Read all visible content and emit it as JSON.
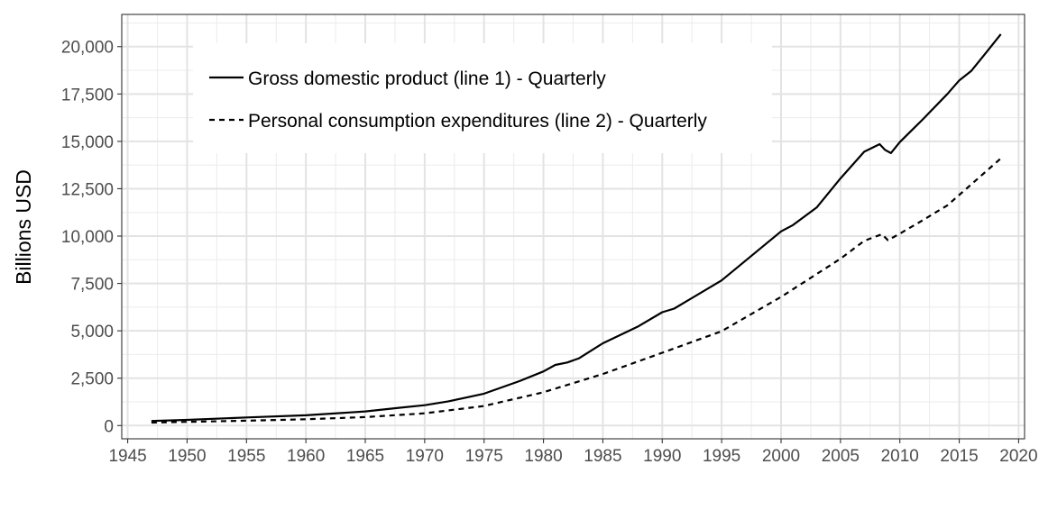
{
  "chart_data": {
    "type": "line",
    "title": "",
    "xlabel": "",
    "ylabel": "Billions USD",
    "xlim": [
      1944.5,
      2020.5
    ],
    "ylim": [
      -700,
      21700
    ],
    "xticks": [
      1945,
      1950,
      1955,
      1960,
      1965,
      1970,
      1975,
      1980,
      1985,
      1990,
      1995,
      2000,
      2005,
      2010,
      2015,
      2020
    ],
    "yticks": [
      0,
      2500,
      5000,
      7500,
      10000,
      12500,
      15000,
      17500,
      20000
    ],
    "ytick_labels": [
      "0",
      "2,500",
      "5,000",
      "7,500",
      "10,000",
      "12,500",
      "15,000",
      "17,500",
      "20,000"
    ],
    "grid": true,
    "legend_position": "top-left",
    "series": [
      {
        "name": "Gross domestic product (line 1) - Quarterly",
        "line_style": "solid",
        "color": "#000000",
        "points": [
          [
            1947,
            243
          ],
          [
            1950,
            300
          ],
          [
            1955,
            426
          ],
          [
            1960,
            542
          ],
          [
            1965,
            744
          ],
          [
            1968,
            945
          ],
          [
            1970,
            1073
          ],
          [
            1972,
            1280
          ],
          [
            1975,
            1685
          ],
          [
            1978,
            2350
          ],
          [
            1980,
            2857
          ],
          [
            1981,
            3200
          ],
          [
            1982,
            3330
          ],
          [
            1983,
            3550
          ],
          [
            1985,
            4340
          ],
          [
            1988,
            5240
          ],
          [
            1990,
            5980
          ],
          [
            1991,
            6170
          ],
          [
            1995,
            7660
          ],
          [
            2000,
            10250
          ],
          [
            2001,
            10580
          ],
          [
            2003,
            11510
          ],
          [
            2005,
            13040
          ],
          [
            2007,
            14450
          ],
          [
            2008.3,
            14850
          ],
          [
            2008.75,
            14550
          ],
          [
            2009.25,
            14380
          ],
          [
            2010,
            14960
          ],
          [
            2012,
            16200
          ],
          [
            2014,
            17500
          ],
          [
            2015,
            18220
          ],
          [
            2016,
            18710
          ],
          [
            2017,
            19480
          ],
          [
            2018.5,
            20660
          ]
        ]
      },
      {
        "name": "Personal consumption expenditures (line 2) - Quarterly",
        "line_style": "dashed",
        "color": "#000000",
        "points": [
          [
            1947,
            156
          ],
          [
            1950,
            192
          ],
          [
            1955,
            258
          ],
          [
            1960,
            331
          ],
          [
            1965,
            444
          ],
          [
            1970,
            648
          ],
          [
            1975,
            1030
          ],
          [
            1980,
            1760
          ],
          [
            1985,
            2720
          ],
          [
            1990,
            3840
          ],
          [
            1995,
            4980
          ],
          [
            2000,
            6790
          ],
          [
            2005,
            8800
          ],
          [
            2007,
            9750
          ],
          [
            2008.5,
            10100
          ],
          [
            2009,
            9780
          ],
          [
            2010,
            10130
          ],
          [
            2012,
            10860
          ],
          [
            2014,
            11620
          ],
          [
            2016,
            12720
          ],
          [
            2018.5,
            14100
          ]
        ]
      }
    ]
  }
}
